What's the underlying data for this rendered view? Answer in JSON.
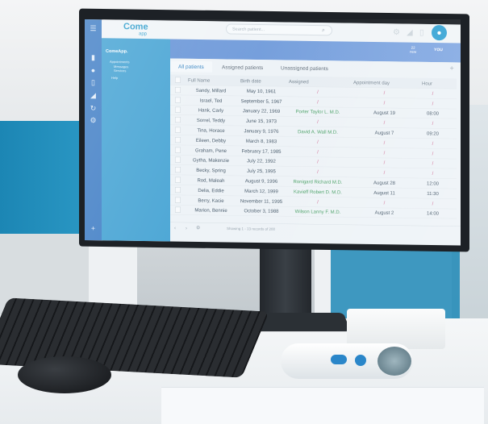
{
  "app": {
    "logo_main": "Come",
    "logo_sub": "app",
    "search_placeholder": "Search patient...",
    "user_label": "YOU",
    "new_count": "22",
    "new_label": "new"
  },
  "sidebar": {
    "title": "ComeApp.",
    "items": [
      {
        "label": "Appointments"
      },
      {
        "label": "Messages"
      },
      {
        "label": "Services"
      },
      {
        "label": "Help"
      }
    ]
  },
  "tabs": [
    {
      "label": "All patients",
      "active": true
    },
    {
      "label": "Assigned patients"
    },
    {
      "label": "Unassigned patients"
    }
  ],
  "table": {
    "columns": [
      "Full Name",
      "Birth date",
      "Assigned",
      "Appointment day",
      "Hour"
    ],
    "rows": [
      [
        "Sandy, Millard",
        "May 10, 1961",
        "/",
        "/",
        "/"
      ],
      [
        "Israel, Ted",
        "September 5, 1967",
        "/",
        "/",
        "/"
      ],
      [
        "Hank, Carly",
        "January 22, 1969",
        "Porter Taylor L. M.D.",
        "August 19",
        "08:00"
      ],
      [
        "Sorrel, Teddy",
        "June 15, 1973",
        "/",
        "/",
        "/"
      ],
      [
        "Tina, Horace",
        "January 9, 1976",
        "David A. Wall M.D.",
        "August 7",
        "09:20"
      ],
      [
        "Eileen, Debby",
        "March 8, 1983",
        "/",
        "/",
        "/"
      ],
      [
        "Graham, Pene",
        "February 17, 1985",
        "/",
        "/",
        "/"
      ],
      [
        "Gytha, Makenzie",
        "July 22, 1992",
        "/",
        "/",
        "/"
      ],
      [
        "Becky, Spring",
        "July 25, 1995",
        "/",
        "/",
        "/"
      ],
      [
        "Rod, Maleah",
        "August 9, 1996",
        "Ronigard Richard M.D.",
        "August 28",
        "12:00"
      ],
      [
        "Delia, Eddie",
        "March 12, 1999",
        "Kavieff Robert D. M.D.",
        "August 11",
        "11:30"
      ],
      [
        "Berry, Kacie",
        "November 11, 1995",
        "/",
        "/",
        "/"
      ],
      [
        "Marion, Bennie",
        "October 3, 1988",
        "Wilson Lanny F. M.D.",
        "August 2",
        "14:00"
      ]
    ]
  },
  "footer": {
    "status": "Showing 1 - 13 records of 200"
  },
  "colors": {
    "accent": "#4c86c9",
    "panel": "#4fa8d6",
    "assigned_text": "#4ea36a",
    "empty_slash": "#d26a93"
  }
}
